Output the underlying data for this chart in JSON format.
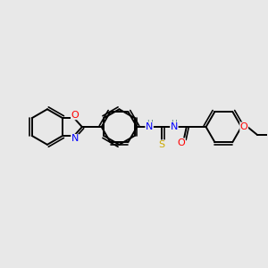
{
  "bg_color": "#e8e8e8",
  "bond_color": "#000000",
  "atom_colors": {
    "N": "#0000ff",
    "O": "#ff0000",
    "S": "#ccaa00",
    "H": "#558888",
    "C": "#000000"
  },
  "figsize": [
    3.0,
    3.0
  ],
  "dpi": 100,
  "lw": 1.4,
  "fs": 7.5
}
